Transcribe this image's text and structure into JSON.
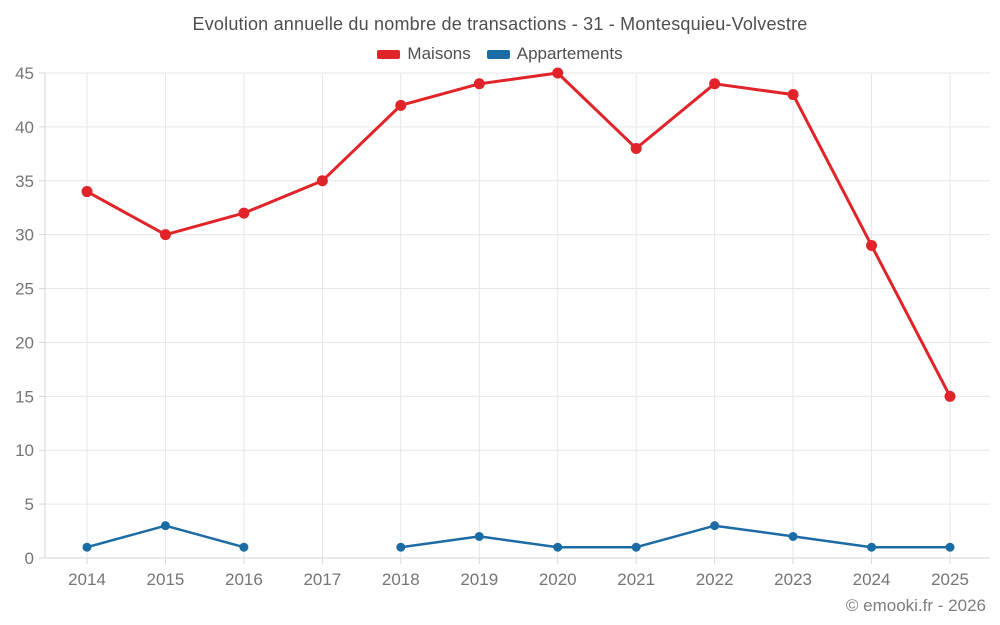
{
  "chart": {
    "title": "Evolution annuelle du nombre de transactions - 31 - Montesquieu-Volvestre"
  },
  "chart_data": {
    "type": "line",
    "categories": [
      "2014",
      "2015",
      "2016",
      "2017",
      "2018",
      "2019",
      "2020",
      "2021",
      "2022",
      "2023",
      "2024",
      "2025"
    ],
    "series": [
      {
        "name": "Maisons",
        "color": "#e1242a",
        "values": [
          34,
          30,
          32,
          35,
          42,
          44,
          45,
          38,
          44,
          43,
          29,
          15
        ]
      },
      {
        "name": "Appartements",
        "color": "#1b6ca5",
        "values": [
          1,
          3,
          1,
          null,
          1,
          2,
          1,
          1,
          3,
          2,
          1,
          1
        ]
      }
    ],
    "ylim": [
      0,
      45
    ],
    "y_ticks": [
      0,
      5,
      10,
      15,
      20,
      25,
      30,
      35,
      40,
      45
    ],
    "grid": true,
    "legend_position": "top",
    "xlabel": "",
    "ylabel": ""
  },
  "footer": {
    "credit": "© emooki.fr - 2026"
  },
  "colors": {
    "background": "#ffffff",
    "title_text": "#4e4e4e",
    "legend_text": "#4f4f4f",
    "axis_text": "#757575",
    "grid_line": "#e7e7e7",
    "axis_line": "#d6d6d6",
    "footer_text": "#7d7d7d"
  }
}
